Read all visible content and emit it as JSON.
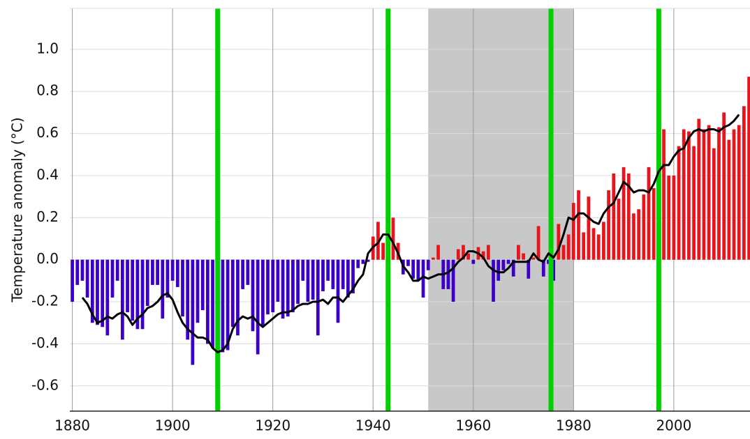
{
  "chart_data": {
    "type": "bar",
    "y_label": "Temperature anomaly (°C)",
    "xlim": [
      1879.5,
      2015.2
    ],
    "ylim": [
      -0.72,
      1.195
    ],
    "xticks": [
      1880,
      1900,
      1920,
      1940,
      1960,
      1980,
      2000
    ],
    "yticks": [
      -0.6,
      -0.4,
      -0.2,
      {
        "value": 0,
        "label": "0.0"
      },
      0.2,
      0.4,
      0.6,
      0.8,
      {
        "value": 1,
        "label": "1.0"
      }
    ],
    "grid": true,
    "highlight_span": [
      1951,
      1980
    ],
    "span_color": "#c8c8c8",
    "markers": [
      1909,
      1943,
      1975.5,
      1997
    ],
    "marker_color": "#00d000",
    "bars": {
      "positive_color": "#e8141c",
      "negative_color": "#3c00c8",
      "x": [
        1880,
        1881,
        1882,
        1883,
        1884,
        1885,
        1886,
        1887,
        1888,
        1889,
        1890,
        1891,
        1892,
        1893,
        1894,
        1895,
        1896,
        1897,
        1898,
        1899,
        1900,
        1901,
        1902,
        1903,
        1904,
        1905,
        1906,
        1907,
        1908,
        1909,
        1910,
        1911,
        1912,
        1913,
        1914,
        1915,
        1916,
        1917,
        1918,
        1919,
        1920,
        1921,
        1922,
        1923,
        1924,
        1925,
        1926,
        1927,
        1928,
        1929,
        1930,
        1931,
        1932,
        1933,
        1934,
        1935,
        1936,
        1937,
        1938,
        1939,
        1940,
        1941,
        1942,
        1943,
        1944,
        1945,
        1946,
        1947,
        1948,
        1949,
        1950,
        1951,
        1952,
        1953,
        1954,
        1955,
        1956,
        1957,
        1958,
        1959,
        1960,
        1961,
        1962,
        1963,
        1964,
        1965,
        1966,
        1967,
        1968,
        1969,
        1970,
        1971,
        1972,
        1973,
        1974,
        1975,
        1976,
        1977,
        1978,
        1979,
        1980,
        1981,
        1982,
        1983,
        1984,
        1985,
        1986,
        1987,
        1988,
        1989,
        1990,
        1991,
        1992,
        1993,
        1994,
        1995,
        1996,
        1997,
        1998,
        1999,
        2000,
        2001,
        2002,
        2003,
        2004,
        2005,
        2006,
        2007,
        2008,
        2009,
        2010,
        2011,
        2012,
        2013,
        2014,
        2015
      ],
      "values": [
        -0.2,
        -0.12,
        -0.1,
        -0.18,
        -0.3,
        -0.31,
        -0.32,
        -0.36,
        -0.18,
        -0.1,
        -0.38,
        -0.25,
        -0.29,
        -0.33,
        -0.33,
        -0.22,
        -0.12,
        -0.12,
        -0.28,
        -0.18,
        -0.1,
        -0.13,
        -0.27,
        -0.38,
        -0.5,
        -0.3,
        -0.24,
        -0.4,
        -0.42,
        -0.45,
        -0.44,
        -0.43,
        -0.32,
        -0.36,
        -0.14,
        -0.12,
        -0.34,
        -0.45,
        -0.32,
        -0.26,
        -0.25,
        -0.2,
        -0.28,
        -0.27,
        -0.25,
        -0.21,
        -0.1,
        -0.2,
        -0.19,
        -0.36,
        -0.15,
        -0.1,
        -0.14,
        -0.3,
        -0.14,
        -0.18,
        -0.16,
        -0.04,
        -0.02,
        -0.01,
        0.11,
        0.18,
        0.08,
        0.07,
        0.2,
        0.08,
        -0.07,
        -0.03,
        -0.09,
        -0.1,
        -0.18,
        -0.05,
        0.01,
        0.07,
        -0.14,
        -0.14,
        -0.2,
        0.05,
        0.07,
        0.03,
        -0.02,
        0.06,
        0.04,
        0.07,
        -0.2,
        -0.1,
        -0.05,
        -0.02,
        -0.08,
        0.07,
        0.03,
        -0.09,
        0.01,
        0.16,
        -0.08,
        -0.02,
        -0.1,
        0.17,
        0.07,
        0.12,
        0.27,
        0.33,
        0.13,
        0.3,
        0.15,
        0.12,
        0.18,
        0.33,
        0.41,
        0.29,
        0.44,
        0.41,
        0.22,
        0.24,
        0.31,
        0.44,
        0.34,
        0.47,
        0.62,
        0.4,
        0.4,
        0.54,
        0.62,
        0.61,
        0.54,
        0.67,
        0.62,
        0.64,
        0.53,
        0.63,
        0.7,
        0.57,
        0.62,
        0.64,
        0.73,
        0.87
      ]
    },
    "line": {
      "color": "#000000",
      "x": [
        1882,
        1883,
        1884,
        1885,
        1886,
        1887,
        1888,
        1889,
        1890,
        1891,
        1892,
        1893,
        1894,
        1895,
        1896,
        1897,
        1898,
        1899,
        1900,
        1901,
        1902,
        1903,
        1904,
        1905,
        1906,
        1907,
        1908,
        1909,
        1910,
        1911,
        1912,
        1913,
        1914,
        1915,
        1916,
        1917,
        1918,
        1919,
        1920,
        1921,
        1922,
        1923,
        1924,
        1925,
        1926,
        1927,
        1928,
        1929,
        1930,
        1931,
        1932,
        1933,
        1934,
        1935,
        1936,
        1937,
        1938,
        1939,
        1940,
        1941,
        1942,
        1943,
        1944,
        1945,
        1946,
        1947,
        1948,
        1949,
        1950,
        1951,
        1952,
        1953,
        1954,
        1955,
        1956,
        1957,
        1958,
        1959,
        1960,
        1961,
        1962,
        1963,
        1964,
        1965,
        1966,
        1967,
        1968,
        1969,
        1970,
        1971,
        1972,
        1973,
        1974,
        1975,
        1976,
        1977,
        1978,
        1979,
        1980,
        1981,
        1982,
        1983,
        1984,
        1985,
        1986,
        1987,
        1988,
        1989,
        1990,
        1991,
        1992,
        1993,
        1994,
        1995,
        1996,
        1997,
        1998,
        1999,
        2000,
        2001,
        2002,
        2003,
        2004,
        2005,
        2006,
        2007,
        2008,
        2009,
        2010,
        2011,
        2012,
        2013
      ],
      "values": [
        -0.18,
        -0.21,
        -0.26,
        -0.3,
        -0.29,
        -0.27,
        -0.28,
        -0.26,
        -0.25,
        -0.27,
        -0.31,
        -0.28,
        -0.26,
        -0.23,
        -0.22,
        -0.2,
        -0.17,
        -0.16,
        -0.19,
        -0.25,
        -0.3,
        -0.33,
        -0.35,
        -0.37,
        -0.37,
        -0.38,
        -0.42,
        -0.44,
        -0.43,
        -0.4,
        -0.33,
        -0.29,
        -0.27,
        -0.28,
        -0.27,
        -0.3,
        -0.32,
        -0.3,
        -0.28,
        -0.26,
        -0.25,
        -0.25,
        -0.24,
        -0.22,
        -0.21,
        -0.21,
        -0.2,
        -0.2,
        -0.19,
        -0.21,
        -0.18,
        -0.18,
        -0.2,
        -0.17,
        -0.14,
        -0.1,
        -0.07,
        0.03,
        0.06,
        0.08,
        0.12,
        0.12,
        0.08,
        0.03,
        -0.03,
        -0.06,
        -0.1,
        -0.1,
        -0.08,
        -0.09,
        -0.08,
        -0.07,
        -0.07,
        -0.06,
        -0.04,
        -0.01,
        0.01,
        0.04,
        0.04,
        0.03,
        0.01,
        -0.03,
        -0.05,
        -0.06,
        -0.06,
        -0.04,
        -0.01,
        -0.01,
        -0.01,
        -0.01,
        0.03,
        0.0,
        -0.01,
        0.03,
        0.01,
        0.05,
        0.12,
        0.2,
        0.19,
        0.22,
        0.22,
        0.2,
        0.18,
        0.17,
        0.22,
        0.25,
        0.27,
        0.32,
        0.37,
        0.35,
        0.32,
        0.33,
        0.33,
        0.32,
        0.36,
        0.42,
        0.45,
        0.45,
        0.49,
        0.52,
        0.53,
        0.58,
        0.61,
        0.62,
        0.61,
        0.62,
        0.62,
        0.61,
        0.63,
        0.64,
        0.66,
        0.69
      ]
    }
  }
}
